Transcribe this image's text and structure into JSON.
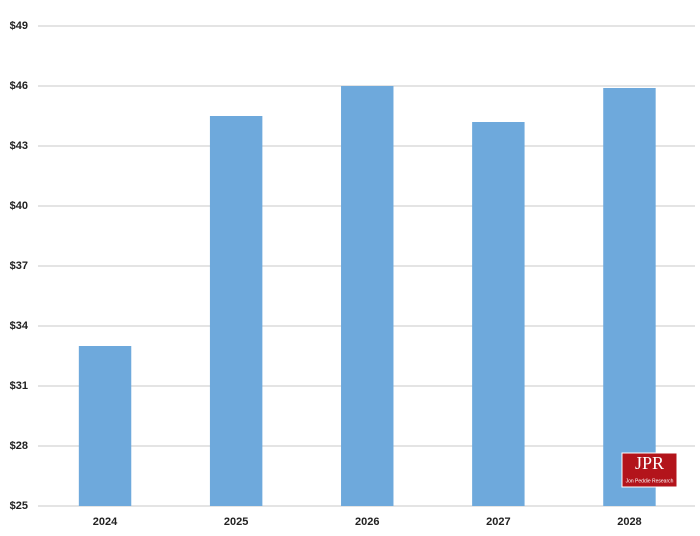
{
  "chart_data": {
    "type": "bar",
    "categories": [
      "2024",
      "2025",
      "2026",
      "2027",
      "2028"
    ],
    "values": [
      33,
      44.5,
      46,
      44.2,
      45.9
    ],
    "color": "#6ea9dc",
    "ylim": [
      25,
      49
    ],
    "yticks": [
      {
        "value": 25,
        "label": "$25"
      },
      {
        "value": 28,
        "label": "$28"
      },
      {
        "value": 31,
        "label": "$31"
      },
      {
        "value": 34,
        "label": "$34"
      },
      {
        "value": 37,
        "label": "$37"
      },
      {
        "value": 40,
        "label": "$40"
      },
      {
        "value": 43,
        "label": "$43"
      },
      {
        "value": 46,
        "label": "$46"
      },
      {
        "value": 49,
        "label": "$49"
      }
    ],
    "grid": true,
    "logo": {
      "title": "JPR",
      "subtitle": "Jon Peddie Research"
    }
  }
}
